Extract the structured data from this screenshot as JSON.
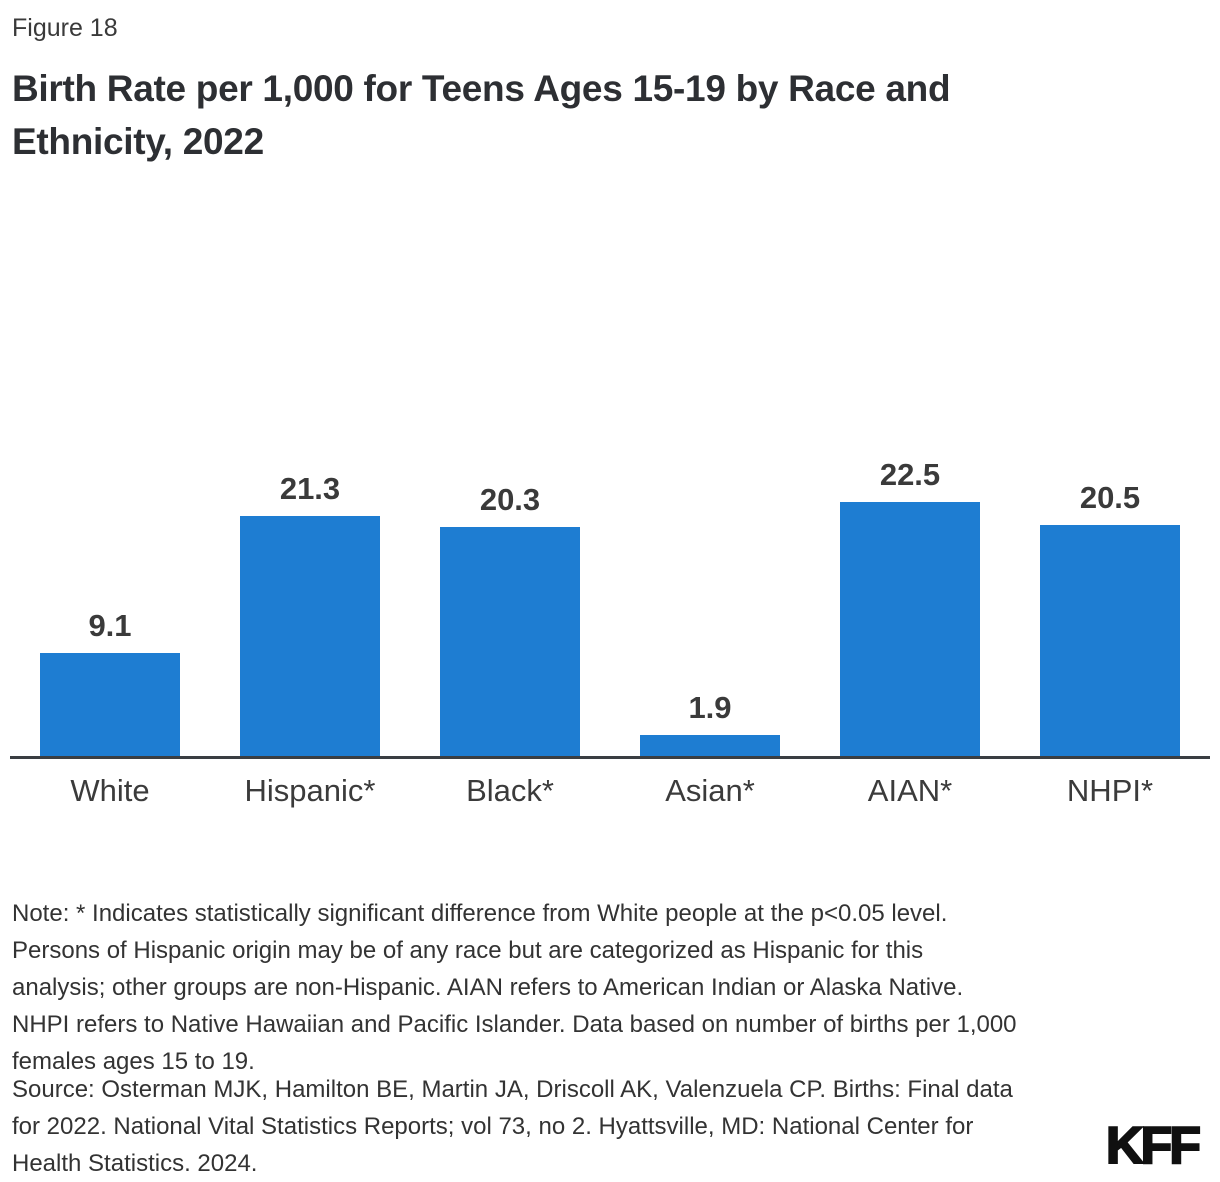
{
  "figure_label": "Figure 18",
  "title_lines": [
    "Birth Rate per 1,000 for Teens Ages 15-19 by Race and",
    "Ethnicity, 2022"
  ],
  "chart_data": {
    "type": "bar",
    "title": "Birth Rate per 1,000 for Teens Ages 15-19 by Race and Ethnicity, 2022",
    "categories": [
      "White",
      "Hispanic*",
      "Black*",
      "Asian*",
      "AIAN*",
      "NHPI*"
    ],
    "values": [
      9.1,
      21.3,
      20.3,
      1.9,
      22.5,
      20.5
    ],
    "value_labels": [
      "9.1",
      "21.3",
      "20.3",
      "1.9",
      "22.5",
      "20.5"
    ],
    "ylim": [
      0,
      25
    ],
    "grid": false,
    "legend": "none",
    "bar_color": "#1E7DD2"
  },
  "note_lines": [
    "Note: * Indicates statistically significant difference from White people at the p<0.05 level.",
    "Persons of Hispanic origin may be of any race but are categorized as Hispanic for this",
    "analysis; other groups are non-Hispanic. AIAN refers to American Indian or Alaska Native.",
    "NHPI refers to Native Hawaiian and Pacific Islander. Data based on number of births per 1,000",
    "females ages 15 to 19."
  ],
  "source_lines": [
    "Source: Osterman MJK, Hamilton BE, Martin JA, Driscoll AK, Valenzuela CP. Births: Final data",
    "for 2022. National Vital Statistics Reports; vol 73, no 2. Hyattsville, MD: National Center for",
    "Health Statistics. 2024."
  ],
  "logo_text": "KFF",
  "colors": {
    "bar_blue": "#1E7DD2",
    "axis_line": "#3A3E42",
    "text_dark": "#333333"
  }
}
